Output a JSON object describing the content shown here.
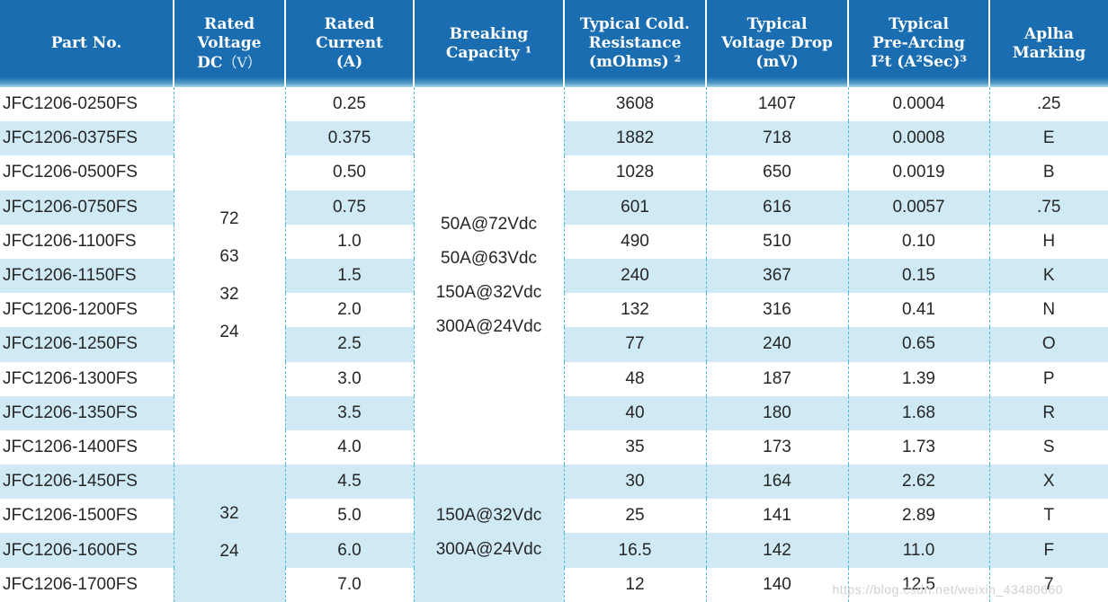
{
  "colors": {
    "header_bg": "#1a6db1",
    "header_text": "#ffffff",
    "row_stripe": "#cfeaf5",
    "grid_dash": "#52bade",
    "body_text": "#262626",
    "watermark_text": "#c4c9cd"
  },
  "header": {
    "part": [
      "Part No."
    ],
    "voltage_lines": [
      "Rated",
      "Voltage"
    ],
    "voltage_dc": "DC",
    "voltage_unit": "（V）",
    "current": [
      "Rated",
      "Current",
      "(A)"
    ],
    "breaking": [
      "Breaking",
      "Capacity ¹"
    ],
    "resistance": [
      "Typical Cold.",
      "Resistance",
      "(mOhms) ²"
    ],
    "drop": [
      "Typical",
      "Voltage Drop",
      "(mV)"
    ],
    "prearcing": [
      "Typical",
      "Pre-Arcing",
      "I²t (A²Sec)³"
    ],
    "marking": [
      "Aplha",
      "Marking"
    ]
  },
  "groups": [
    {
      "shaded": false,
      "voltages": [
        "72",
        "63",
        "32",
        "24"
      ],
      "breaking_capacity": [
        "50A@72Vdc",
        "50A@63Vdc",
        "150A@32Vdc",
        "300A@24Vdc"
      ],
      "rows": [
        {
          "part": "JFC1206-0250FS",
          "current": "0.25",
          "resistance": "3608",
          "drop": "1407",
          "prearcing": "0.0004",
          "marking": ".25"
        },
        {
          "part": "JFC1206-0375FS",
          "current": "0.375",
          "resistance": "1882",
          "drop": "718",
          "prearcing": "0.0008",
          "marking": "E"
        },
        {
          "part": "JFC1206-0500FS",
          "current": "0.50",
          "resistance": "1028",
          "drop": "650",
          "prearcing": "0.0019",
          "marking": "B"
        },
        {
          "part": "JFC1206-0750FS",
          "current": "0.75",
          "resistance": "601",
          "drop": "616",
          "prearcing": "0.0057",
          "marking": ".75"
        },
        {
          "part": "JFC1206-1100FS",
          "current": "1.0",
          "resistance": "490",
          "drop": "510",
          "prearcing": "0.10",
          "marking": "H"
        },
        {
          "part": "JFC1206-1150FS",
          "current": "1.5",
          "resistance": "240",
          "drop": "367",
          "prearcing": "0.15",
          "marking": "K"
        },
        {
          "part": "JFC1206-1200FS",
          "current": "2.0",
          "resistance": "132",
          "drop": "316",
          "prearcing": "0.41",
          "marking": "N"
        },
        {
          "part": "JFC1206-1250FS",
          "current": "2.5",
          "resistance": "77",
          "drop": "240",
          "prearcing": "0.65",
          "marking": "O"
        },
        {
          "part": "JFC1206-1300FS",
          "current": "3.0",
          "resistance": "48",
          "drop": "187",
          "prearcing": "1.39",
          "marking": "P"
        },
        {
          "part": "JFC1206-1350FS",
          "current": "3.5",
          "resistance": "40",
          "drop": "180",
          "prearcing": "1.68",
          "marking": "R"
        },
        {
          "part": "JFC1206-1400FS",
          "current": "4.0",
          "resistance": "35",
          "drop": "173",
          "prearcing": "1.73",
          "marking": "S"
        }
      ]
    },
    {
      "shaded": true,
      "voltages": [
        "32",
        "24"
      ],
      "breaking_capacity": [
        "150A@32Vdc",
        "300A@24Vdc"
      ],
      "rows": [
        {
          "part": "JFC1206-1450FS",
          "current": "4.5",
          "resistance": "30",
          "drop": "164",
          "prearcing": "2.62",
          "marking": "X"
        },
        {
          "part": "JFC1206-1500FS",
          "current": "5.0",
          "resistance": "25",
          "drop": "141",
          "prearcing": "2.89",
          "marking": "T"
        },
        {
          "part": "JFC1206-1600FS",
          "current": "6.0",
          "resistance": "16.5",
          "drop": "142",
          "prearcing": "11.0",
          "marking": "F"
        },
        {
          "part": "JFC1206-1700FS",
          "current": "7.0",
          "resistance": "12",
          "drop": "140",
          "prearcing": "12.5",
          "marking": "7"
        }
      ]
    }
  ],
  "watermark": {
    "text": "https://blog.csdn.net/weixin_43480660"
  }
}
